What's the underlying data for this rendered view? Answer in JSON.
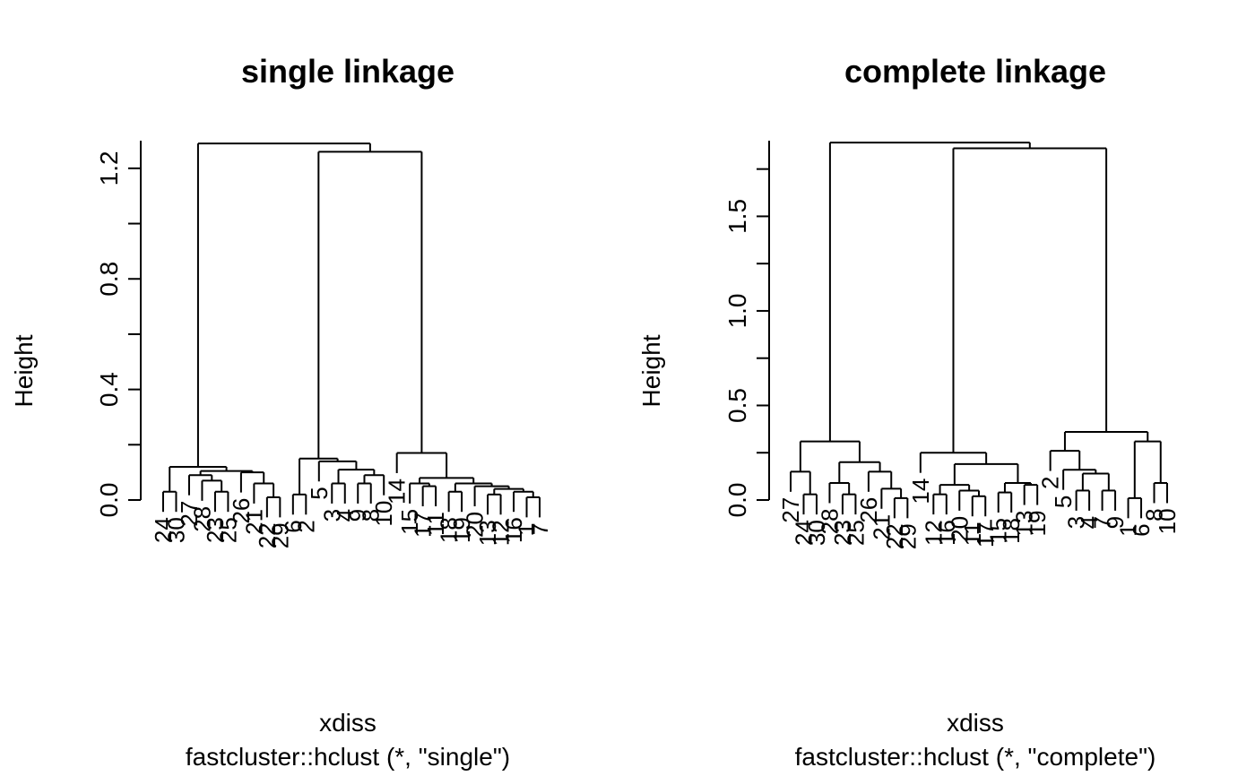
{
  "chart_data": [
    {
      "type": "dendrogram",
      "title": "single linkage",
      "xlabel": "xdiss",
      "sublabel": "fastcluster::hclust (*, \"single\")",
      "ylabel": "Height",
      "ylim": [
        0,
        1.3
      ],
      "yticks": [
        "0.0",
        "0.4",
        "0.8",
        "1.2"
      ],
      "ytick_values": [
        0,
        0.4,
        0.8,
        1.2
      ],
      "leaves": [
        "24",
        "30",
        "27",
        "28",
        "23",
        "25",
        "26",
        "21",
        "22",
        "29",
        "6",
        "2",
        "5",
        "3",
        "4",
        "9",
        "8",
        "10",
        "14",
        "15",
        "17",
        "11",
        "18",
        "19",
        "20",
        "13",
        "12",
        "16",
        "1",
        "7"
      ],
      "tree": {
        "h": 1.29,
        "c": [
          {
            "h": 0.12,
            "c": [
              {
                "h": 0.03,
                "c": [
                  "24",
                  "30"
                ]
              },
              {
                "h": 0.105,
                "c": [
                  {
                    "h": 0.09,
                    "c": [
                      "27",
                      {
                        "h": 0.07,
                        "c": [
                          "28",
                          {
                            "h": 0.03,
                            "c": [
                              "23",
                              "25"
                            ]
                          }
                        ]
                      }
                    ]
                  },
                  {
                    "h": 0.1,
                    "c": [
                      "26",
                      {
                        "h": 0.06,
                        "c": [
                          "21",
                          {
                            "h": 0.01,
                            "c": [
                              "22",
                              "29"
                            ]
                          }
                        ]
                      }
                    ]
                  }
                ]
              }
            ]
          },
          {
            "h": 1.26,
            "c": [
              {
                "h": 0.15,
                "c": [
                  {
                    "h": 0.02,
                    "c": [
                      "6",
                      "2"
                    ]
                  },
                  {
                    "h": 0.14,
                    "c": [
                      "5",
                      {
                        "h": 0.11,
                        "c": [
                          {
                            "h": 0.06,
                            "c": [
                              "3",
                              "4"
                            ]
                          },
                          {
                            "h": 0.09,
                            "c": [
                              {
                                "h": 0.06,
                                "c": [
                                  "9",
                                  "8"
                                ]
                              },
                              "10"
                            ]
                          }
                        ]
                      }
                    ]
                  }
                ]
              },
              {
                "h": 0.17,
                "c": [
                  "14",
                  {
                    "h": 0.08,
                    "c": [
                      {
                        "h": 0.06,
                        "c": [
                          "15",
                          {
                            "h": 0.05,
                            "c": [
                              "17",
                              "11"
                            ]
                          }
                        ]
                      },
                      {
                        "h": 0.06,
                        "c": [
                          {
                            "h": 0.03,
                            "c": [
                              "18",
                              "19"
                            ]
                          },
                          {
                            "h": 0.05,
                            "c": [
                              "20",
                              {
                                "h": 0.04,
                                "c": [
                                  {
                                    "h": 0.02,
                                    "c": [
                                      "13",
                                      "12"
                                    ]
                                  },
                                  {
                                    "h": 0.03,
                                    "c": [
                                      "16",
                                      {
                                        "h": 0.01,
                                        "c": [
                                          "1",
                                          "7"
                                        ]
                                      }
                                    ]
                                  }
                                ]
                              }
                            ]
                          }
                        ]
                      }
                    ]
                  }
                ]
              }
            ]
          }
        ]
      }
    },
    {
      "type": "dendrogram",
      "title": "complete linkage",
      "xlabel": "xdiss",
      "sublabel": "fastcluster::hclust (*, \"complete\")",
      "ylabel": "Height",
      "ylim": [
        0,
        1.9
      ],
      "yticks": [
        "0.0",
        "0.5",
        "1.0",
        "1.5"
      ],
      "ytick_values": [
        0,
        0.5,
        1.0,
        1.5
      ],
      "leaves": [
        "27",
        "24",
        "30",
        "28",
        "23",
        "25",
        "26",
        "21",
        "22",
        "29",
        "14",
        "12",
        "16",
        "20",
        "11",
        "17",
        "15",
        "18",
        "13",
        "19",
        "2",
        "5",
        "3",
        "4",
        "7",
        "9",
        "1",
        "6",
        "8",
        "10"
      ],
      "tree": {
        "h": 1.89,
        "c": [
          {
            "h": 0.31,
            "c": [
              {
                "h": 0.15,
                "c": [
                  "27",
                  {
                    "h": 0.03,
                    "c": [
                      "24",
                      "30"
                    ]
                  }
                ]
              },
              {
                "h": 0.2,
                "c": [
                  {
                    "h": 0.09,
                    "c": [
                      "28",
                      {
                        "h": 0.03,
                        "c": [
                          "23",
                          "25"
                        ]
                      }
                    ]
                  },
                  {
                    "h": 0.15,
                    "c": [
                      "26",
                      {
                        "h": 0.06,
                        "c": [
                          "21",
                          {
                            "h": 0.01,
                            "c": [
                              "22",
                              "29"
                            ]
                          }
                        ]
                      }
                    ]
                  }
                ]
              }
            ]
          },
          {
            "h": 1.86,
            "c": [
              {
                "h": 0.25,
                "c": [
                  "14",
                  {
                    "h": 0.19,
                    "c": [
                      {
                        "h": 0.08,
                        "c": [
                          {
                            "h": 0.03,
                            "c": [
                              "12",
                              "16"
                            ]
                          },
                          {
                            "h": 0.05,
                            "c": [
                              "20",
                              {
                                "h": 0.02,
                                "c": [
                                  "11",
                                  "17"
                                ]
                              }
                            ]
                          }
                        ]
                      },
                      {
                        "h": 0.09,
                        "c": [
                          {
                            "h": 0.04,
                            "c": [
                              "15",
                              "18"
                            ]
                          },
                          {
                            "h": 0.08,
                            "c": [
                              "13",
                              "19"
                            ]
                          }
                        ]
                      }
                    ]
                  }
                ]
              },
              {
                "h": 0.36,
                "c": [
                  {
                    "h": 0.26,
                    "c": [
                      "2",
                      {
                        "h": 0.16,
                        "c": [
                          "5",
                          {
                            "h": 0.14,
                            "c": [
                              {
                                "h": 0.05,
                                "c": [
                                  "3",
                                  "4"
                                ]
                              },
                              {
                                "h": 0.05,
                                "c": [
                                  "7",
                                  "9"
                                ]
                              }
                            ]
                          }
                        ]
                      }
                    ]
                  },
                  {
                    "h": 0.31,
                    "c": [
                      {
                        "h": 0.01,
                        "c": [
                          "1",
                          "6"
                        ]
                      },
                      {
                        "h": 0.09,
                        "c": [
                          "8",
                          "10"
                        ]
                      }
                    ]
                  }
                ]
              }
            ]
          }
        ]
      }
    }
  ]
}
